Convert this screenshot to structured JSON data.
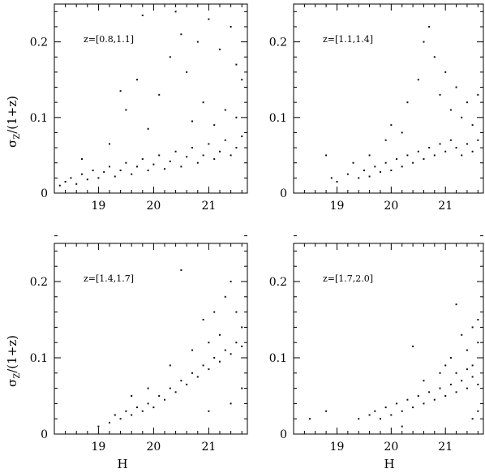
{
  "figure": {
    "ylabel_main": "σ",
    "ylabel_sub": "Z",
    "ylabel_rest": "/(1+z)",
    "xlabel": "H"
  },
  "chart_data": [
    {
      "type": "scatter",
      "annotation": "z=[0.8,1.1]",
      "xlim": [
        18.2,
        21.7
      ],
      "ylim": [
        0,
        0.25
      ],
      "x_ticks": [
        19,
        20,
        21
      ],
      "y_ticks": [
        0,
        0.1,
        0.2
      ],
      "x_tick_labels": [
        "19",
        "20",
        "21"
      ],
      "y_tick_labels": [
        "0",
        "0.1",
        "0.2"
      ],
      "show_x_labels": true,
      "show_y_labels": true,
      "show_ylabel": true,
      "show_xlabel": false,
      "points": [
        [
          18.3,
          0.01
        ],
        [
          18.4,
          0.015
        ],
        [
          18.5,
          0.02
        ],
        [
          18.6,
          0.012
        ],
        [
          18.7,
          0.025
        ],
        [
          18.8,
          0.018
        ],
        [
          18.9,
          0.03
        ],
        [
          19.0,
          0.02
        ],
        [
          19.1,
          0.028
        ],
        [
          19.2,
          0.035
        ],
        [
          19.3,
          0.022
        ],
        [
          19.4,
          0.03
        ],
        [
          19.5,
          0.04
        ],
        [
          19.6,
          0.025
        ],
        [
          19.7,
          0.035
        ],
        [
          19.8,
          0.045
        ],
        [
          19.9,
          0.03
        ],
        [
          20.0,
          0.038
        ],
        [
          20.1,
          0.05
        ],
        [
          20.2,
          0.032
        ],
        [
          20.3,
          0.042
        ],
        [
          20.4,
          0.055
        ],
        [
          20.5,
          0.035
        ],
        [
          20.6,
          0.048
        ],
        [
          20.7,
          0.06
        ],
        [
          20.8,
          0.04
        ],
        [
          20.9,
          0.05
        ],
        [
          21.0,
          0.065
        ],
        [
          21.1,
          0.045
        ],
        [
          21.2,
          0.055
        ],
        [
          21.3,
          0.07
        ],
        [
          21.4,
          0.05
        ],
        [
          21.5,
          0.06
        ],
        [
          21.6,
          0.075
        ],
        [
          19.2,
          0.065
        ],
        [
          19.5,
          0.11
        ],
        [
          19.4,
          0.135
        ],
        [
          19.7,
          0.15
        ],
        [
          20.1,
          0.13
        ],
        [
          20.3,
          0.18
        ],
        [
          20.5,
          0.21
        ],
        [
          20.6,
          0.16
        ],
        [
          20.8,
          0.2
        ],
        [
          21.0,
          0.23
        ],
        [
          21.2,
          0.19
        ],
        [
          21.4,
          0.22
        ],
        [
          21.5,
          0.17
        ],
        [
          21.6,
          0.15
        ],
        [
          20.9,
          0.12
        ],
        [
          21.3,
          0.11
        ],
        [
          20.7,
          0.095
        ],
        [
          21.1,
          0.09
        ],
        [
          21.5,
          0.1
        ],
        [
          19.9,
          0.085
        ],
        [
          18.7,
          0.045
        ],
        [
          19.8,
          0.235
        ],
        [
          20.4,
          0.24
        ]
      ]
    },
    {
      "type": "scatter",
      "annotation": "z=[1.1,1.4]",
      "xlim": [
        18.2,
        21.7
      ],
      "ylim": [
        0,
        0.25
      ],
      "x_ticks": [
        19,
        20,
        21
      ],
      "y_ticks": [
        0,
        0.1,
        0.2
      ],
      "x_tick_labels": [
        "19",
        "20",
        "21"
      ],
      "y_tick_labels": [
        "0",
        "0.1",
        "0.2"
      ],
      "show_x_labels": true,
      "show_y_labels": true,
      "show_ylabel": false,
      "show_xlabel": false,
      "points": [
        [
          18.8,
          0.05
        ],
        [
          18.9,
          0.02
        ],
        [
          19.0,
          0.015
        ],
        [
          19.2,
          0.025
        ],
        [
          19.4,
          0.02
        ],
        [
          19.5,
          0.03
        ],
        [
          19.6,
          0.022
        ],
        [
          19.7,
          0.035
        ],
        [
          19.8,
          0.028
        ],
        [
          19.9,
          0.04
        ],
        [
          20.0,
          0.03
        ],
        [
          20.1,
          0.045
        ],
        [
          20.2,
          0.035
        ],
        [
          20.3,
          0.05
        ],
        [
          20.4,
          0.04
        ],
        [
          20.5,
          0.055
        ],
        [
          20.6,
          0.045
        ],
        [
          20.7,
          0.06
        ],
        [
          20.8,
          0.05
        ],
        [
          20.9,
          0.065
        ],
        [
          21.0,
          0.055
        ],
        [
          21.1,
          0.07
        ],
        [
          21.2,
          0.06
        ],
        [
          21.3,
          0.05
        ],
        [
          21.4,
          0.065
        ],
        [
          21.5,
          0.055
        ],
        [
          21.6,
          0.07
        ],
        [
          20.0,
          0.09
        ],
        [
          20.3,
          0.12
        ],
        [
          20.5,
          0.15
        ],
        [
          20.6,
          0.2
        ],
        [
          20.8,
          0.18
        ],
        [
          20.9,
          0.13
        ],
        [
          21.0,
          0.16
        ],
        [
          21.1,
          0.11
        ],
        [
          21.2,
          0.14
        ],
        [
          21.3,
          0.1
        ],
        [
          21.4,
          0.12
        ],
        [
          21.5,
          0.09
        ],
        [
          20.7,
          0.22
        ],
        [
          21.6,
          0.13
        ],
        [
          19.9,
          0.07
        ],
        [
          20.2,
          0.08
        ],
        [
          19.6,
          0.05
        ],
        [
          19.3,
          0.04
        ]
      ]
    },
    {
      "type": "scatter",
      "annotation": "z=[1.4,1.7]",
      "xlim": [
        18.2,
        21.7
      ],
      "ylim": [
        0,
        0.25
      ],
      "x_ticks": [
        19,
        20,
        21
      ],
      "y_ticks": [
        0,
        0.1,
        0.2
      ],
      "x_tick_labels": [
        "19",
        "20",
        "21"
      ],
      "y_tick_labels": [
        "0",
        "0.1",
        "0.2"
      ],
      "show_x_labels": true,
      "show_y_labels": true,
      "show_ylabel": true,
      "show_xlabel": true,
      "points": [
        [
          19.0,
          0.01
        ],
        [
          19.2,
          0.015
        ],
        [
          19.3,
          0.025
        ],
        [
          19.4,
          0.02
        ],
        [
          19.5,
          0.03
        ],
        [
          19.6,
          0.025
        ],
        [
          19.7,
          0.035
        ],
        [
          19.8,
          0.03
        ],
        [
          19.9,
          0.04
        ],
        [
          20.0,
          0.035
        ],
        [
          20.1,
          0.05
        ],
        [
          20.2,
          0.045
        ],
        [
          20.3,
          0.06
        ],
        [
          20.4,
          0.055
        ],
        [
          20.5,
          0.07
        ],
        [
          20.6,
          0.065
        ],
        [
          20.7,
          0.08
        ],
        [
          20.8,
          0.075
        ],
        [
          20.9,
          0.09
        ],
        [
          21.0,
          0.085
        ],
        [
          21.1,
          0.1
        ],
        [
          21.2,
          0.095
        ],
        [
          21.3,
          0.11
        ],
        [
          21.4,
          0.105
        ],
        [
          21.5,
          0.12
        ],
        [
          21.6,
          0.115
        ],
        [
          20.5,
          0.215
        ],
        [
          20.9,
          0.15
        ],
        [
          21.1,
          0.16
        ],
        [
          21.3,
          0.18
        ],
        [
          21.4,
          0.2
        ],
        [
          21.5,
          0.16
        ],
        [
          21.6,
          0.14
        ],
        [
          21.2,
          0.13
        ],
        [
          21.0,
          0.12
        ],
        [
          20.7,
          0.11
        ],
        [
          20.3,
          0.09
        ],
        [
          19.6,
          0.05
        ],
        [
          19.9,
          0.06
        ],
        [
          21.6,
          0.06
        ],
        [
          21.4,
          0.04
        ],
        [
          21.0,
          0.03
        ]
      ]
    },
    {
      "type": "scatter",
      "annotation": "z=[1.7,2.0]",
      "xlim": [
        18.2,
        21.7
      ],
      "ylim": [
        0,
        0.25
      ],
      "x_ticks": [
        19,
        20,
        21
      ],
      "y_ticks": [
        0,
        0.1,
        0.2
      ],
      "x_tick_labels": [
        "19",
        "20",
        "21"
      ],
      "y_tick_labels": [
        "0",
        "0.1",
        "0.2"
      ],
      "show_x_labels": true,
      "show_y_labels": true,
      "show_ylabel": false,
      "show_xlabel": true,
      "points": [
        [
          18.5,
          0.02
        ],
        [
          18.8,
          0.03
        ],
        [
          19.4,
          0.02
        ],
        [
          19.6,
          0.025
        ],
        [
          19.7,
          0.03
        ],
        [
          19.8,
          0.02
        ],
        [
          19.9,
          0.035
        ],
        [
          20.0,
          0.025
        ],
        [
          20.1,
          0.04
        ],
        [
          20.2,
          0.03
        ],
        [
          20.3,
          0.045
        ],
        [
          20.4,
          0.035
        ],
        [
          20.5,
          0.05
        ],
        [
          20.6,
          0.04
        ],
        [
          20.7,
          0.055
        ],
        [
          20.8,
          0.045
        ],
        [
          20.9,
          0.06
        ],
        [
          21.0,
          0.05
        ],
        [
          21.1,
          0.065
        ],
        [
          21.2,
          0.055
        ],
        [
          21.3,
          0.07
        ],
        [
          21.4,
          0.06
        ],
        [
          21.5,
          0.075
        ],
        [
          21.6,
          0.065
        ],
        [
          21.2,
          0.17
        ],
        [
          21.3,
          0.13
        ],
        [
          21.5,
          0.14
        ],
        [
          21.6,
          0.15
        ],
        [
          21.1,
          0.1
        ],
        [
          21.4,
          0.11
        ],
        [
          21.5,
          0.09
        ],
        [
          20.9,
          0.08
        ],
        [
          21.6,
          0.12
        ],
        [
          20.4,
          0.115
        ],
        [
          20.6,
          0.07
        ],
        [
          21.0,
          0.09
        ],
        [
          21.2,
          0.08
        ],
        [
          21.4,
          0.085
        ],
        [
          21.6,
          0.03
        ],
        [
          21.5,
          0.02
        ],
        [
          20.2,
          0.01
        ]
      ]
    }
  ]
}
